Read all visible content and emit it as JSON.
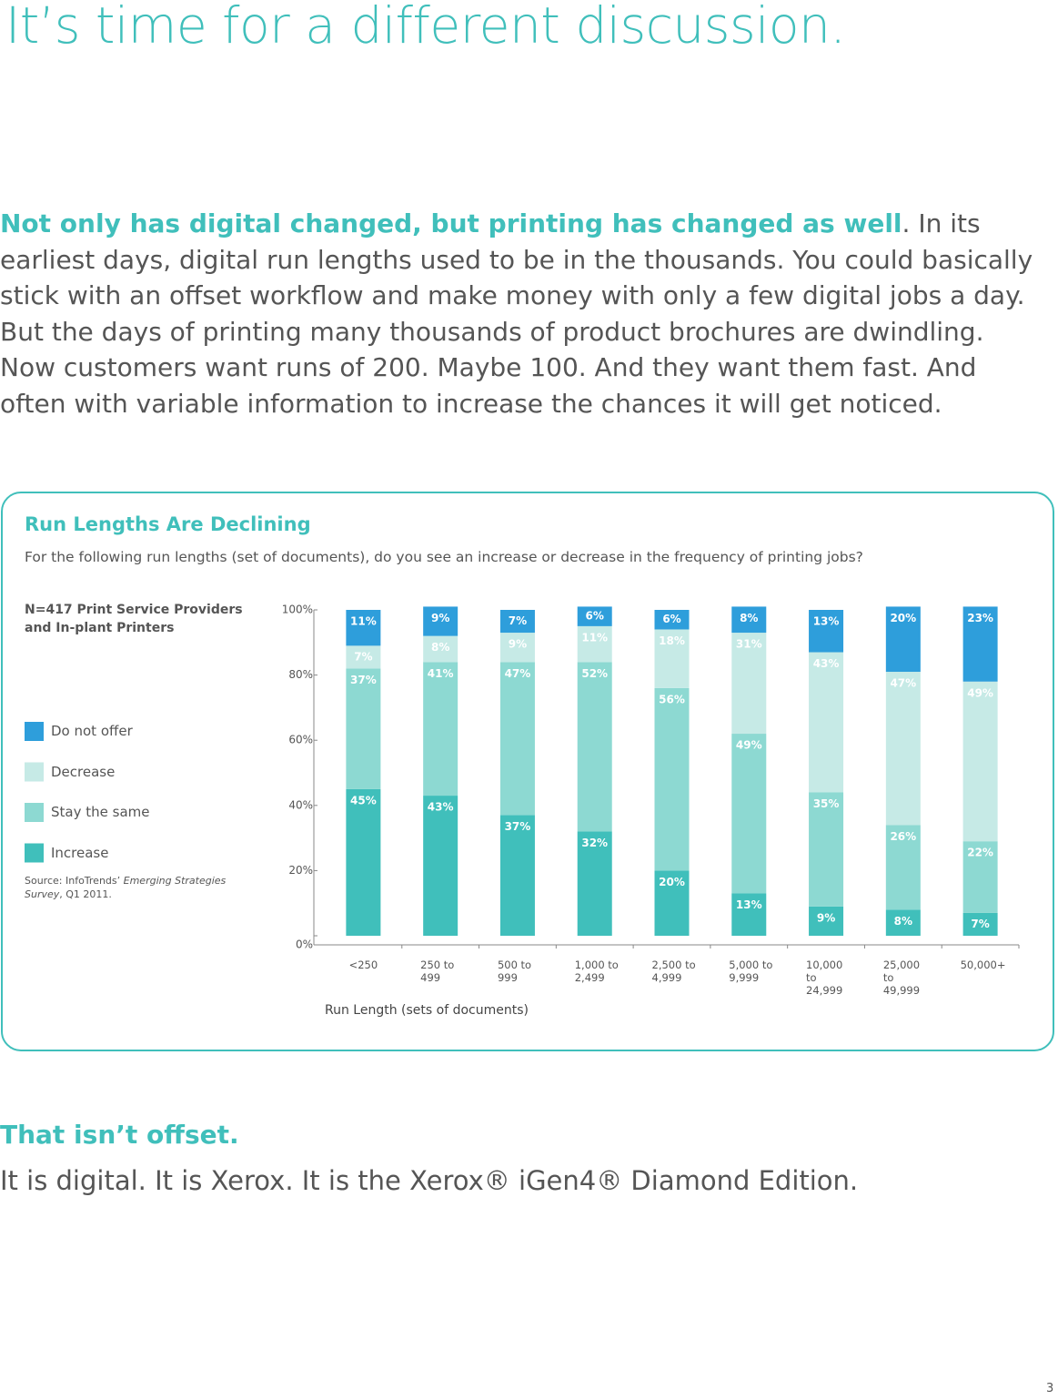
{
  "header": {
    "title": "It’s time for a different discussion."
  },
  "intro": {
    "lead": "Not only has digital changed, but printing has changed as well",
    "text": ". In its earliest days, digital run lengths used to be in the thousands. You could basically stick with an offset workflow and make money with only a few digital jobs a day. But the days of printing many thousands of product brochures are dwindling. Now customers want runs of 200. Maybe 100. And they want them fast. And often with variable information to increase the chances it will get noticed."
  },
  "chart_data": {
    "type": "stacked_bar",
    "title": "Run Lengths Are Declining",
    "subtitle": "For the following run lengths (set of documents), do you see an increase or decrease in the frequency of printing jobs?",
    "sample_note": "N=417 Print Service Providers and In-plant Printers",
    "source": {
      "prefix": "Source: InfoTrends’ ",
      "title": "Emerging Strategies Survey",
      "suffix": ", Q1 2011."
    },
    "x_label": "Run Length (sets of documents)",
    "categories": [
      "<250",
      "250 to 499",
      "500 to 999",
      "1,000 to 2,499",
      "2,500 to 4,999",
      "5,000 to 9,999",
      "10,000 to 24,999",
      "25,000 to 49,999",
      "50,000+"
    ],
    "ylim": [
      0,
      100
    ],
    "yticks": [
      {
        "value": 0,
        "label": "0%"
      },
      {
        "value": 20,
        "label": "20%"
      },
      {
        "value": 40,
        "label": "40%"
      },
      {
        "value": 60,
        "label": "60%"
      },
      {
        "value": 80,
        "label": "80%"
      },
      {
        "value": 100,
        "label": "100%"
      }
    ],
    "series": [
      {
        "name": "Do not offer",
        "color": "#2e9edb",
        "values": [
          11,
          9,
          7,
          6,
          6,
          8,
          13,
          20,
          23
        ],
        "value_labels": [
          "11%",
          "9%",
          "7%",
          "6%",
          "6%",
          "8%",
          "13%",
          "20%",
          "23%"
        ]
      },
      {
        "name": "Decrease",
        "color": "#c6eae6",
        "values": [
          7,
          8,
          9,
          11,
          18,
          31,
          43,
          47,
          49
        ],
        "value_labels": [
          "7%",
          "8%",
          "9%",
          "11%",
          "18%",
          "31%",
          "43%",
          "47%",
          "49%"
        ]
      },
      {
        "name": "Stay the same",
        "color": "#8dd9d2",
        "values": [
          37,
          41,
          47,
          52,
          56,
          49,
          35,
          26,
          22
        ],
        "value_labels": [
          "37%",
          "41%",
          "47%",
          "52%",
          "56%",
          "49%",
          "35%",
          "26%",
          "22%"
        ]
      },
      {
        "name": "Increase",
        "color": "#40bfbb",
        "values": [
          45,
          43,
          37,
          32,
          20,
          13,
          9,
          8,
          7
        ],
        "value_labels": [
          "45%",
          "43%",
          "37%",
          "32%",
          "20%",
          "13%",
          "9%",
          "8%",
          "7%"
        ]
      }
    ]
  },
  "closing": {
    "title": "That isn’t offset.",
    "text": "It is digital. It is Xerox. It is the Xerox® iGen4® Diamond Edition."
  },
  "page_number": "3"
}
